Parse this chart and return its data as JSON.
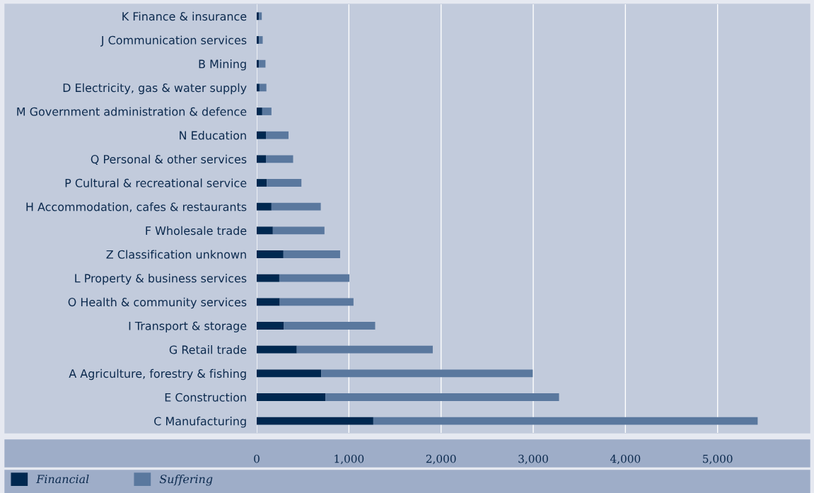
{
  "chart_data": {
    "type": "bar",
    "orientation": "horizontal",
    "stacked": true,
    "categories": [
      "K Finance & insurance",
      "J Communication services",
      "B Mining",
      "D Electricity, gas & water supply",
      "M Government administration & defence",
      "N Education",
      "Q Personal & other services",
      "P Cultural & recreational service",
      "H Accommodation, cafes & restaurants",
      "F Wholesale trade",
      "Z Classification unknown",
      "L Property & business services",
      "O Health & community services",
      "I Transport & storage",
      "G Retail trade",
      "A Agriculture, forestry & fishing",
      "E Construction",
      "C Manufacturing"
    ],
    "series": [
      {
        "name": "Financial",
        "color": "#002850",
        "values": [
          25,
          25,
          25,
          30,
          60,
          100,
          100,
          110,
          160,
          175,
          290,
          245,
          250,
          295,
          435,
          700,
          745,
          1265
        ]
      },
      {
        "name": "Suffering",
        "color": "#5a789e",
        "values": [
          30,
          40,
          70,
          75,
          100,
          245,
          295,
          375,
          535,
          560,
          615,
          760,
          800,
          990,
          1475,
          2295,
          2535,
          4170
        ]
      }
    ],
    "xlim": [
      0,
      6000
    ],
    "xticks": [
      {
        "value": 0,
        "label": "0"
      },
      {
        "value": 1000,
        "label": "1,000"
      },
      {
        "value": 2000,
        "label": "2,000"
      },
      {
        "value": 3000,
        "label": "3,000"
      },
      {
        "value": 4000,
        "label": "4,000"
      },
      {
        "value": 5000,
        "label": "5,000"
      }
    ],
    "grid": "x",
    "legend": "bottom left"
  }
}
